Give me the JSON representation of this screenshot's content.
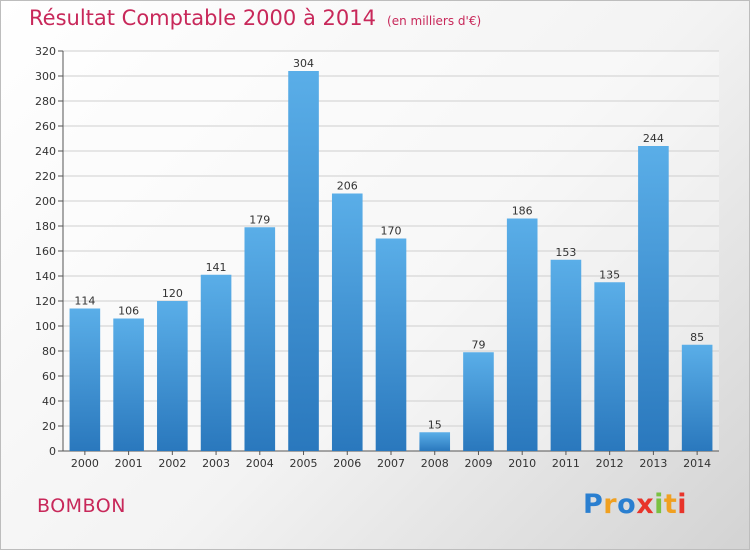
{
  "title": "Résultat Comptable 2000 à 2014",
  "subtitle": "(en milliers d'€)",
  "place": "BOMBON",
  "logo": {
    "letters": [
      "P",
      "r",
      "o",
      "x",
      "i",
      "t",
      "i"
    ],
    "colors": [
      "#2a7fd0",
      "#f0a020",
      "#2a7fd0",
      "#e8342a",
      "#7ac142",
      "#f0a020",
      "#e8342a"
    ]
  },
  "colors": {
    "accent": "#c8285a",
    "bar_top": "#5aaee8",
    "bar_bottom": "#2a78bd"
  },
  "chart_data": {
    "type": "bar",
    "categories": [
      "2000",
      "2001",
      "2002",
      "2003",
      "2004",
      "2005",
      "2006",
      "2007",
      "2008",
      "2009",
      "2010",
      "2011",
      "2012",
      "2013",
      "2014"
    ],
    "values": [
      114,
      106,
      120,
      141,
      179,
      304,
      206,
      170,
      15,
      79,
      186,
      153,
      135,
      244,
      85
    ],
    "ylim": [
      0,
      320
    ],
    "yticks": [
      0,
      20,
      40,
      60,
      80,
      100,
      120,
      140,
      160,
      180,
      200,
      220,
      240,
      260,
      280,
      300,
      320
    ],
    "grid": true
  }
}
